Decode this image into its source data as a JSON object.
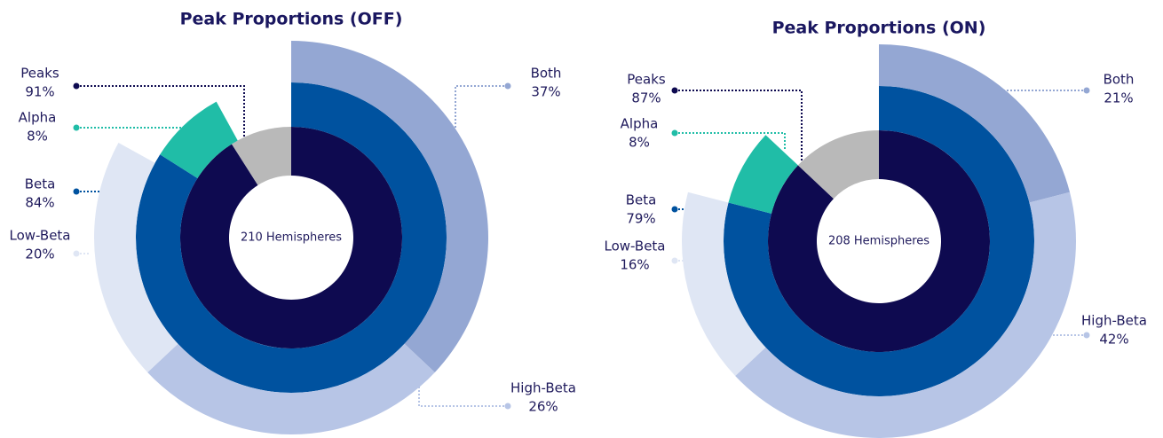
{
  "chart_data": [
    {
      "type": "sunburst",
      "title": "Peak Proportions (OFF)",
      "center_label": "210 Hemispheres",
      "remainder_color": "#b9b9b9",
      "rings": [
        {
          "series": [
            {
              "name": "Peaks",
              "color": "#0e0a50",
              "value": 91,
              "value_label": "91%"
            }
          ]
        },
        {
          "series": [
            {
              "name": "Beta",
              "color": "#00529f",
              "value": 84,
              "value_label": "84%"
            },
            {
              "name": "Alpha",
              "color": "#20bda7",
              "value": 8,
              "value_label": "8%"
            }
          ]
        },
        {
          "series": [
            {
              "name": "Both",
              "color": "#94a7d3",
              "value": 37,
              "value_label": "37%"
            },
            {
              "name": "High-Beta",
              "color": "#b7c5e6",
              "value": 26,
              "value_label": "26%"
            },
            {
              "name": "Low-Beta",
              "color": "#dfe6f4",
              "value": 20,
              "value_label": "20%"
            }
          ]
        }
      ]
    },
    {
      "type": "sunburst",
      "title": "Peak Proportions (ON)",
      "center_label": "208 Hemispheres",
      "remainder_color": "#b9b9b9",
      "rings": [
        {
          "series": [
            {
              "name": "Peaks",
              "color": "#0e0a50",
              "value": 87,
              "value_label": "87%"
            }
          ]
        },
        {
          "series": [
            {
              "name": "Beta",
              "color": "#00529f",
              "value": 79,
              "value_label": "79%"
            },
            {
              "name": "Alpha",
              "color": "#20bda7",
              "value": 8,
              "value_label": "8%"
            }
          ]
        },
        {
          "series": [
            {
              "name": "Both",
              "color": "#94a7d3",
              "value": 21,
              "value_label": "21%"
            },
            {
              "name": "High-Beta",
              "color": "#b7c5e6",
              "value": 42,
              "value_label": "42%"
            },
            {
              "name": "Low-Beta",
              "color": "#dfe6f4",
              "value": 16,
              "value_label": "16%"
            }
          ]
        }
      ]
    }
  ]
}
